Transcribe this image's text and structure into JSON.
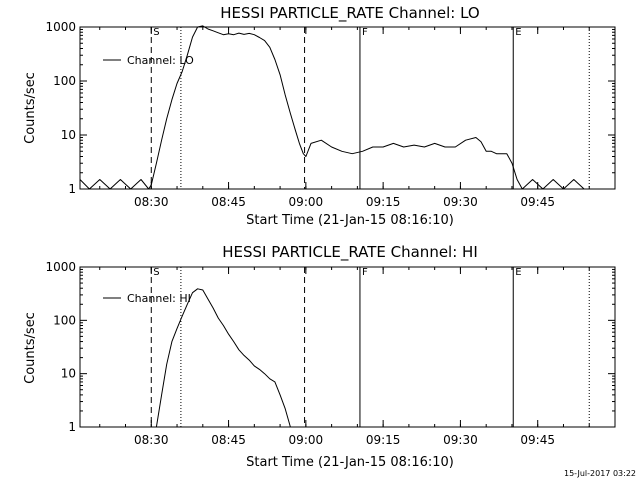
{
  "timestamp": "15-Jul-2017 03:22",
  "chart_data": [
    {
      "type": "line",
      "title": "HESSI PARTICLE_RATE Channel: LO",
      "xlabel": "Start Time (21-Jan-15 08:16:10)",
      "ylabel": "Counts/sec",
      "yscale": "log",
      "ylim": [
        1,
        1000
      ],
      "xlim": [
        "08:16:10",
        "10:00:00"
      ],
      "x_ticks": [
        "08:30",
        "08:45",
        "09:00",
        "09:15",
        "09:30",
        "09:45"
      ],
      "y_ticks": [
        "1",
        "10",
        "100",
        "1000"
      ],
      "legend": {
        "label": "Channel: LO",
        "position": "top-left"
      },
      "markers": [
        {
          "label": "S",
          "time": "08:30:00",
          "style": "dashed"
        },
        {
          "label": "",
          "time": "08:35:45",
          "style": "dotted"
        },
        {
          "label": "",
          "time": "08:59:45",
          "style": "dashed"
        },
        {
          "label": "F",
          "time": "09:10:30",
          "style": "solid"
        },
        {
          "label": "E",
          "time": "09:40:15",
          "style": "solid"
        },
        {
          "label": "",
          "time": "09:55:00",
          "style": "dotted"
        }
      ],
      "series": [
        {
          "name": "Channel: LO",
          "x": [
            "08:16:10",
            "08:18:00",
            "08:20:00",
            "08:22:00",
            "08:24:00",
            "08:26:00",
            "08:28:00",
            "08:29:30",
            "08:30:00",
            "08:31:00",
            "08:32:00",
            "08:33:00",
            "08:34:00",
            "08:35:00",
            "08:36:00",
            "08:37:00",
            "08:38:00",
            "08:39:00",
            "08:40:00",
            "08:41:00",
            "08:42:00",
            "08:43:00",
            "08:44:00",
            "08:45:00",
            "08:46:00",
            "08:47:00",
            "08:48:00",
            "08:49:00",
            "08:50:00",
            "08:51:00",
            "08:52:00",
            "08:53:00",
            "08:54:00",
            "08:55:00",
            "08:56:00",
            "08:57:00",
            "08:58:00",
            "08:58:45",
            "08:59:30",
            "09:00:00",
            "09:01:00",
            "09:03:00",
            "09:05:00",
            "09:07:00",
            "09:09:00",
            "09:11:00",
            "09:13:00",
            "09:15:00",
            "09:17:00",
            "09:19:00",
            "09:21:00",
            "09:23:00",
            "09:25:00",
            "09:27:00",
            "09:29:00",
            "09:31:00",
            "09:33:00",
            "09:34:00",
            "09:35:00",
            "09:36:00",
            "09:37:00",
            "09:38:00",
            "09:39:00",
            "09:40:00",
            "09:41:00",
            "09:42:00",
            "09:44:00",
            "09:46:00",
            "09:48:00",
            "09:50:00",
            "09:52:00",
            "09:54:00",
            "09:56:00"
          ],
          "y": [
            1.5,
            1,
            1.5,
            1,
            1.5,
            1,
            1.5,
            1,
            1.2,
            3,
            8,
            20,
            45,
            90,
            150,
            300,
            650,
            1000,
            1050,
            920,
            850,
            780,
            720,
            750,
            720,
            770,
            730,
            760,
            720,
            640,
            560,
            420,
            250,
            130,
            55,
            25,
            12,
            7,
            4.5,
            4,
            7,
            8,
            6,
            5,
            4.5,
            5,
            6,
            6,
            7,
            6,
            6.5,
            6,
            7,
            6,
            6,
            8,
            9,
            7.5,
            5,
            5,
            4.5,
            4.5,
            4.5,
            3,
            1.5,
            1,
            1.5,
            1,
            1.5,
            1,
            1.5,
            1,
            1
          ]
        }
      ]
    },
    {
      "type": "line",
      "title": "HESSI PARTICLE_RATE Channel: HI",
      "xlabel": "Start Time (21-Jan-15 08:16:10)",
      "ylabel": "Counts/sec",
      "yscale": "log",
      "ylim": [
        1,
        1000
      ],
      "xlim": [
        "08:16:10",
        "10:00:00"
      ],
      "x_ticks": [
        "08:30",
        "08:45",
        "09:00",
        "09:15",
        "09:30",
        "09:45"
      ],
      "y_ticks": [
        "1",
        "10",
        "100",
        "1000"
      ],
      "legend": {
        "label": "Channel: HI",
        "position": "top-left"
      },
      "markers": [
        {
          "label": "S",
          "time": "08:30:00",
          "style": "dashed"
        },
        {
          "label": "",
          "time": "08:35:45",
          "style": "dotted"
        },
        {
          "label": "",
          "time": "08:59:45",
          "style": "dashed"
        },
        {
          "label": "F",
          "time": "09:10:30",
          "style": "solid"
        },
        {
          "label": "E",
          "time": "09:40:15",
          "style": "solid"
        },
        {
          "label": "",
          "time": "09:55:00",
          "style": "dotted"
        }
      ],
      "series": [
        {
          "name": "Channel: HI",
          "x": [
            "08:31:00",
            "08:32:00",
            "08:33:00",
            "08:34:00",
            "08:35:00",
            "08:36:00",
            "08:37:00",
            "08:38:00",
            "08:39:00",
            "08:40:00",
            "08:41:00",
            "08:42:00",
            "08:43:00",
            "08:44:00",
            "08:45:00",
            "08:46:00",
            "08:47:00",
            "08:48:00",
            "08:49:00",
            "08:50:00",
            "08:51:00",
            "08:52:00",
            "08:53:00",
            "08:54:00",
            "08:55:00",
            "08:56:00",
            "08:57:00"
          ],
          "y": [
            1,
            4,
            15,
            40,
            70,
            120,
            200,
            330,
            390,
            370,
            250,
            170,
            110,
            80,
            55,
            40,
            28,
            22,
            18,
            14,
            12,
            10,
            8,
            7,
            4,
            2.2,
            1
          ]
        }
      ]
    }
  ]
}
